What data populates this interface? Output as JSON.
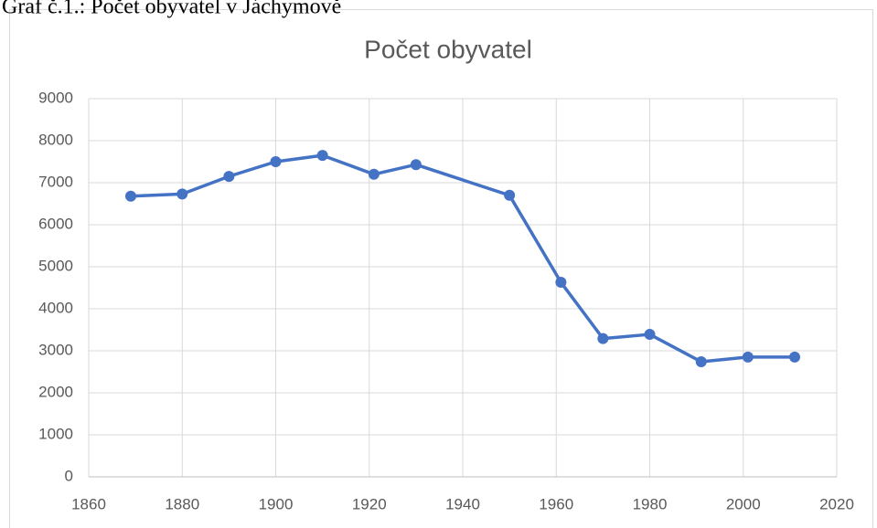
{
  "caption": "Graf č.1.: Počet obyvatel v Jáchymově",
  "chart_data": {
    "type": "line",
    "title": "Počet obyvatel",
    "x": [
      1869,
      1880,
      1890,
      1900,
      1910,
      1921,
      1930,
      1950,
      1961,
      1970,
      1980,
      1991,
      2001,
      2011
    ],
    "series": [
      {
        "name": "Počet obyvatel",
        "color": "#4472c4",
        "values": [
          6680,
          6730,
          7150,
          7500,
          7650,
          7200,
          7430,
          6700,
          4630,
          3290,
          3390,
          2740,
          2850,
          2850
        ]
      }
    ],
    "xlim": [
      1860,
      2020
    ],
    "xticks": [
      1860,
      1880,
      1900,
      1920,
      1940,
      1960,
      1980,
      2000,
      2020
    ],
    "ylim": [
      0,
      9000
    ],
    "yticks": [
      0,
      1000,
      2000,
      3000,
      4000,
      5000,
      6000,
      7000,
      8000,
      9000
    ],
    "grid": true
  }
}
